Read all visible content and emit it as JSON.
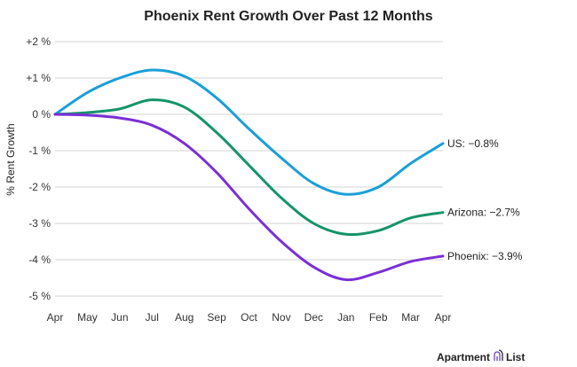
{
  "chart_data": {
    "type": "line",
    "title": "Phoenix Rent Growth Over Past 12 Months",
    "xlabel": "",
    "ylabel": "% Rent Growth",
    "categories": [
      "Apr",
      "May",
      "Jun",
      "Jul",
      "Aug",
      "Sep",
      "Oct",
      "Nov",
      "Dec",
      "Jan",
      "Feb",
      "Mar",
      "Apr"
    ],
    "yticks": [
      2,
      1,
      0,
      -1,
      -2,
      -3,
      -4,
      -5
    ],
    "ytick_labels": [
      "+2 %",
      "+1 %",
      "0 %",
      "-1 %",
      "-2 %",
      "-3 %",
      "-4 %",
      "-5 %"
    ],
    "ylim": [
      -5,
      2
    ],
    "grid": true,
    "legend": "end-of-line labels",
    "series": [
      {
        "name": "US",
        "label": "US: −0.8%",
        "color": "#1a9fd8",
        "values": [
          0,
          0.6,
          1.0,
          1.22,
          1.05,
          0.45,
          -0.4,
          -1.2,
          -1.9,
          -2.2,
          -2.0,
          -1.35,
          -0.8
        ]
      },
      {
        "name": "Arizona",
        "label": "Arizona: −2.7%",
        "color": "#14946a",
        "values": [
          0,
          0.05,
          0.15,
          0.4,
          0.2,
          -0.5,
          -1.4,
          -2.3,
          -3.0,
          -3.3,
          -3.2,
          -2.85,
          -2.7
        ]
      },
      {
        "name": "Phoenix",
        "label": "Phoenix: −3.9%",
        "color": "#7b2fd6",
        "values": [
          0,
          -0.02,
          -0.1,
          -0.3,
          -0.8,
          -1.6,
          -2.6,
          -3.5,
          -4.2,
          -4.55,
          -4.35,
          -4.05,
          -3.9
        ]
      }
    ]
  },
  "branding": {
    "logo_text_left": "Apartment",
    "logo_text_right": "List"
  }
}
